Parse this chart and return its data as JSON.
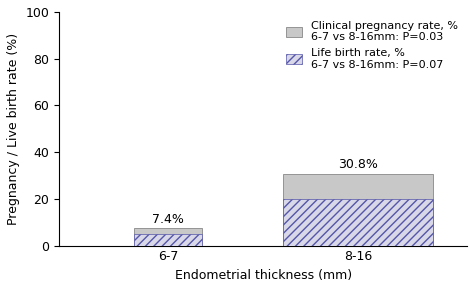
{
  "categories": [
    "6-7",
    "8-16"
  ],
  "clinical_pregnancy_rate": [
    7.4,
    30.8
  ],
  "live_birth_rate": [
    5.0,
    20.0
  ],
  "bar_width": 0.8,
  "ylim": [
    0,
    100
  ],
  "yticks": [
    0,
    20,
    40,
    60,
    80,
    100
  ],
  "xlabel": "Endometrial thickness (mm)",
  "ylabel": "Pregnancy / Live birth rate (%)",
  "bar_color_gray": "#c8c8c8",
  "hatch_facecolor": "#d8d8e8",
  "hatch_edgecolor": "#5555aa",
  "hatch_pattern": "////",
  "label_clinical": "Clinical pregnancy rate, %\n6-7 vs 8-16mm: P=0.03",
  "label_lbr": "Life birth rate, %\n6-7 vs 8-16mm: P=0.07",
  "annotation_67": "7.4%",
  "annotation_816": "30.8%",
  "legend_fontsize": 8,
  "axis_fontsize": 9,
  "tick_fontsize": 9,
  "annot_fontsize": 9,
  "figsize": [
    4.74,
    2.89
  ],
  "dpi": 100
}
